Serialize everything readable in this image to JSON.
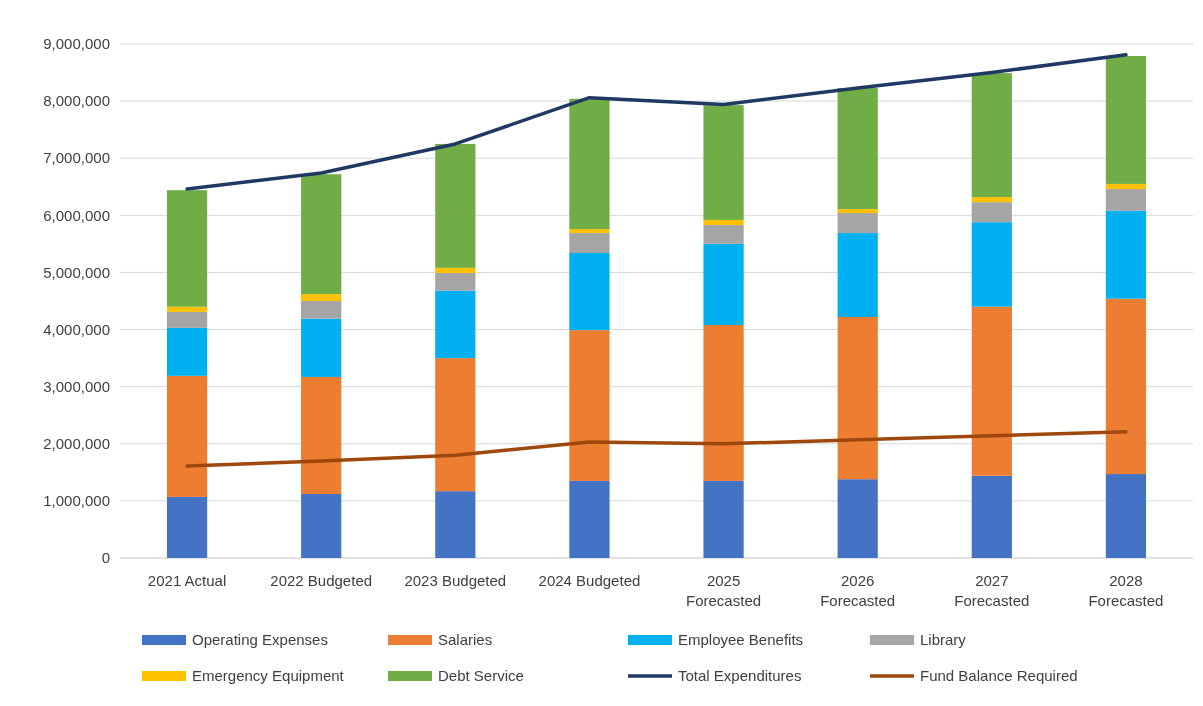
{
  "chart_data": {
    "type": "bar",
    "stacked": true,
    "grid": "y",
    "legend": "bottom",
    "categories": [
      "2021 Actual",
      "2022 Budgeted",
      "2023 Budgeted",
      "2024 Budgeted",
      "2025 Forecasted",
      "2026 Forecasted",
      "2027 Forecasted",
      "2028 Forecasted"
    ],
    "ylim": [
      0,
      9000000
    ],
    "yticks": [
      {
        "value": 0,
        "label": "0"
      },
      {
        "value": 1000000,
        "label": "1,000,000"
      },
      {
        "value": 2000000,
        "label": "2,000,000"
      },
      {
        "value": 3000000,
        "label": "3,000,000"
      },
      {
        "value": 4000000,
        "label": "4,000,000"
      },
      {
        "value": 5000000,
        "label": "5,000,000"
      },
      {
        "value": 6000000,
        "label": "6,000,000"
      },
      {
        "value": 7000000,
        "label": "7,000,000"
      },
      {
        "value": 8000000,
        "label": "8,000,000"
      },
      {
        "value": 9000000,
        "label": "9,000,000"
      }
    ],
    "series": [
      {
        "name": "Operating Expenses",
        "color": "#4472c4",
        "values": [
          1070000,
          1120000,
          1170000,
          1350000,
          1350000,
          1380000,
          1440000,
          1470000
        ]
      },
      {
        "name": "Salaries",
        "color": "#ed7d31",
        "values": [
          2120000,
          2050000,
          2330000,
          2640000,
          2730000,
          2840000,
          2960000,
          3070000
        ]
      },
      {
        "name": "Employee Benefits",
        "color": "#00b0f0",
        "values": [
          840000,
          1020000,
          1180000,
          1350000,
          1420000,
          1470000,
          1480000,
          1540000
        ]
      },
      {
        "name": "Library",
        "color": "#a5a5a5",
        "values": [
          280000,
          310000,
          310000,
          350000,
          330000,
          350000,
          350000,
          380000
        ]
      },
      {
        "name": "Emergency Equipment",
        "color": "#ffc000",
        "values": [
          90000,
          120000,
          90000,
          70000,
          90000,
          70000,
          90000,
          90000
        ]
      },
      {
        "name": "Debt Service",
        "color": "#70ad47",
        "values": [
          2040000,
          2100000,
          2170000,
          2280000,
          2010000,
          2120000,
          2170000,
          2240000
        ]
      },
      {
        "name": "Total Expenditures",
        "type": "line",
        "color": "#203864",
        "values": [
          6460000,
          6740000,
          7250000,
          8060000,
          7940000,
          8230000,
          8500000,
          8810000
        ]
      },
      {
        "name": "Fund Balance Required",
        "type": "line",
        "color": "#9e480e",
        "values": [
          1610000,
          1700000,
          1800000,
          2030000,
          2000000,
          2070000,
          2140000,
          2210000
        ]
      }
    ]
  }
}
